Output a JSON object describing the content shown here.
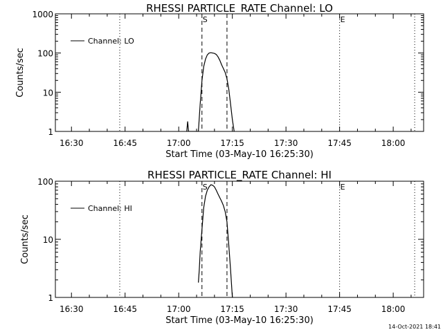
{
  "chart_data": [
    {
      "type": "line",
      "title": "RHESSI PARTICLE_RATE Channel: LO",
      "xlabel": "Start Time (03-May-10 16:25:30)",
      "ylabel": "Counts/sec",
      "yscale": "log",
      "xlim": [
        "16:25:30",
        "18:08:30"
      ],
      "ylim": [
        1,
        1000
      ],
      "x_ticks": [
        "16:30",
        "16:45",
        "17:00",
        "17:15",
        "17:30",
        "17:45",
        "18:00"
      ],
      "y_ticks": [
        "1",
        "10",
        "100",
        "1000"
      ],
      "legend": {
        "position": "top-left",
        "entries": [
          "Channel: LO"
        ]
      },
      "markers": [
        {
          "label": "S",
          "time": "17:06:30",
          "style": "dashed"
        },
        {
          "label": "",
          "time": "17:13:30",
          "style": "dashed"
        },
        {
          "label": "E",
          "time": "17:45:00",
          "style": "dotted"
        },
        {
          "label": "",
          "time": "16:43:30",
          "style": "dotted"
        },
        {
          "label": "",
          "time": "18:06:00",
          "style": "dotted"
        }
      ],
      "series": [
        {
          "name": "Channel: LO",
          "points": [
            [
              "17:02:15",
              1
            ],
            [
              "17:02:30",
              1.8
            ],
            [
              "17:02:45",
              1
            ],
            [
              "17:05:30",
              1
            ],
            [
              "17:06:00",
              5
            ],
            [
              "17:06:30",
              20
            ],
            [
              "17:07:00",
              45
            ],
            [
              "17:07:30",
              70
            ],
            [
              "17:08:00",
              90
            ],
            [
              "17:08:30",
              100
            ],
            [
              "17:09:00",
              102
            ],
            [
              "17:09:30",
              100
            ],
            [
              "17:10:00",
              98
            ],
            [
              "17:10:30",
              92
            ],
            [
              "17:11:00",
              80
            ],
            [
              "17:11:30",
              65
            ],
            [
              "17:12:00",
              50
            ],
            [
              "17:12:30",
              40
            ],
            [
              "17:13:00",
              32
            ],
            [
              "17:13:30",
              22
            ],
            [
              "17:14:00",
              12
            ],
            [
              "17:14:30",
              5
            ],
            [
              "17:15:00",
              2
            ],
            [
              "17:15:30",
              1
            ]
          ]
        }
      ]
    },
    {
      "type": "line",
      "title": "RHESSI PARTICLE_RATE Channel: HI",
      "xlabel": "Start Time (03-May-10 16:25:30)",
      "ylabel": "Counts/sec",
      "yscale": "log",
      "xlim": [
        "16:25:30",
        "18:08:30"
      ],
      "ylim": [
        1,
        100
      ],
      "x_ticks": [
        "16:30",
        "16:45",
        "17:00",
        "17:15",
        "17:30",
        "17:45",
        "18:00"
      ],
      "y_ticks": [
        "1",
        "10",
        "100"
      ],
      "legend": {
        "position": "top-left",
        "entries": [
          "Channel: HI"
        ]
      },
      "markers": [
        {
          "label": "S",
          "time": "17:06:30",
          "style": "dashed"
        },
        {
          "label": "",
          "time": "17:13:30",
          "style": "dashed"
        },
        {
          "label": "E",
          "time": "17:45:00",
          "style": "dotted"
        },
        {
          "label": "",
          "time": "16:43:30",
          "style": "dotted"
        },
        {
          "label": "",
          "time": "18:06:00",
          "style": "dotted"
        }
      ],
      "series": [
        {
          "name": "Channel: HI",
          "points": [
            [
              "17:05:30",
              1.8
            ],
            [
              "17:05:45",
              3
            ],
            [
              "17:06:00",
              6
            ],
            [
              "17:06:30",
              15
            ],
            [
              "17:07:00",
              35
            ],
            [
              "17:07:30",
              55
            ],
            [
              "17:08:00",
              70
            ],
            [
              "17:08:30",
              80
            ],
            [
              "17:09:00",
              87
            ],
            [
              "17:09:30",
              85
            ],
            [
              "17:10:00",
              80
            ],
            [
              "17:10:30",
              70
            ],
            [
              "17:11:00",
              60
            ],
            [
              "17:11:30",
              52
            ],
            [
              "17:12:00",
              45
            ],
            [
              "17:12:30",
              38
            ],
            [
              "17:13:00",
              30
            ],
            [
              "17:13:30",
              20
            ],
            [
              "17:14:00",
              8
            ],
            [
              "17:14:30",
              3
            ],
            [
              "17:15:00",
              1
            ]
          ]
        }
      ]
    }
  ],
  "footer": {
    "timestamp": "14-Oct-2021 18:41"
  }
}
